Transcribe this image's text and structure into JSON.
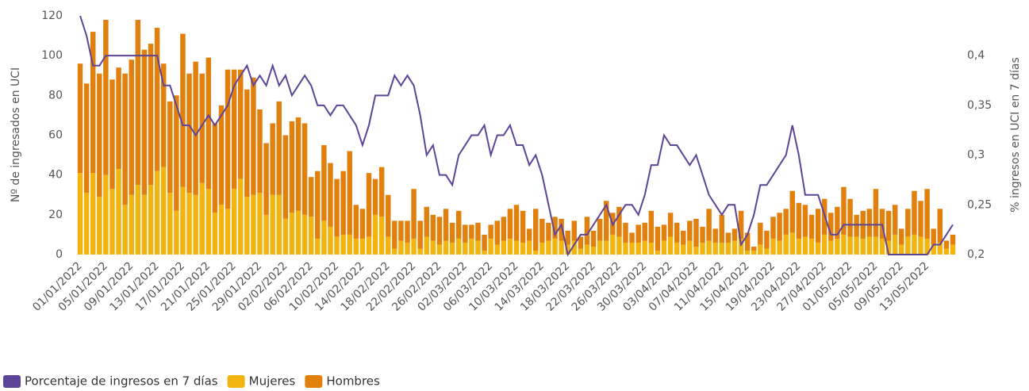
{
  "chart_data": {
    "type": "bar",
    "categories": [
      "01/01/2022",
      null,
      null,
      null,
      "05/01/2022",
      null,
      null,
      null,
      "09/01/2022",
      null,
      null,
      null,
      "13/01/2022",
      null,
      null,
      null,
      "17/01/2022",
      null,
      null,
      null,
      "21/01/2022",
      null,
      null,
      null,
      "25/01/2022",
      null,
      null,
      null,
      "29/01/2022",
      null,
      null,
      null,
      "02/02/2022",
      null,
      null,
      null,
      "06/02/2022",
      null,
      null,
      null,
      "10/02/2022",
      null,
      null,
      null,
      "14/02/2022",
      null,
      null,
      null,
      "18/02/2022",
      null,
      null,
      null,
      "22/02/2022",
      null,
      null,
      null,
      "26/02/2022",
      null,
      null,
      null,
      "02/03/2022",
      null,
      null,
      null,
      "06/03/2022",
      null,
      null,
      null,
      "10/03/2022",
      null,
      null,
      null,
      "14/03/2022",
      null,
      null,
      null,
      "18/03/2022",
      null,
      null,
      null,
      "22/03/2022",
      null,
      null,
      null,
      "26/03/2022",
      null,
      null,
      null,
      "30/03/2022",
      null,
      null,
      null,
      "03/04/2022",
      null,
      null,
      null,
      "07/04/2022",
      null,
      null,
      null,
      "11/04/2022",
      null,
      null,
      null,
      "15/04/2022",
      null,
      null,
      null,
      "19/04/2022",
      null,
      null,
      null,
      "23/04/2022",
      null,
      null,
      null,
      "27/04/2022",
      null,
      null,
      null,
      "01/05/2022",
      null,
      null,
      null,
      "05/05/2022",
      null,
      null,
      null,
      "09/05/2022",
      null,
      null,
      null,
      "13/05/2022",
      null,
      null,
      null,
      null
    ],
    "series": [
      {
        "name": "Porcentaje de ingresos en 7 días",
        "type": "line",
        "axis": "y2",
        "color": "#5c4497",
        "values": [
          0.44,
          0.42,
          0.39,
          0.39,
          0.4,
          0.4,
          0.4,
          0.4,
          0.4,
          0.4,
          0.4,
          0.4,
          0.4,
          0.37,
          0.37,
          0.35,
          0.33,
          0.33,
          0.32,
          0.33,
          0.34,
          0.33,
          0.34,
          0.35,
          0.37,
          0.38,
          0.39,
          0.37,
          0.38,
          0.37,
          0.39,
          0.37,
          0.38,
          0.36,
          0.37,
          0.38,
          0.37,
          0.35,
          0.35,
          0.34,
          0.35,
          0.35,
          0.34,
          0.33,
          0.31,
          0.33,
          0.36,
          0.36,
          0.36,
          0.38,
          0.37,
          0.38,
          0.37,
          0.34,
          0.3,
          0.31,
          0.28,
          0.28,
          0.27,
          0.3,
          0.31,
          0.32,
          0.32,
          0.33,
          0.3,
          0.32,
          0.32,
          0.33,
          0.31,
          0.31,
          0.29,
          0.3,
          0.28,
          0.25,
          0.22,
          0.23,
          0.2,
          0.21,
          0.22,
          0.22,
          0.23,
          0.24,
          0.25,
          0.23,
          0.24,
          0.25,
          0.25,
          0.24,
          0.26,
          0.29,
          0.29,
          0.32,
          0.31,
          0.31,
          0.3,
          0.29,
          0.3,
          0.28,
          0.26,
          0.25,
          0.24,
          0.25,
          0.25,
          0.21,
          0.22,
          0.24,
          0.27,
          0.27,
          0.28,
          0.29,
          0.3,
          0.33,
          0.3,
          0.26,
          0.26,
          0.26,
          0.24,
          0.22,
          0.22,
          0.23,
          0.23,
          0.23,
          0.23,
          0.23,
          0.23,
          0.23,
          0.2,
          0.2,
          0.2,
          0.2,
          0.2,
          0.2,
          0.2,
          0.21,
          0.21,
          0.22,
          0.23
        ]
      },
      {
        "name": "Mujeres",
        "type": "bar",
        "color": "#f2b50f",
        "values": [
          41,
          31,
          41,
          29,
          40,
          33,
          43,
          25,
          30,
          35,
          30,
          35,
          42,
          44,
          31,
          22,
          34,
          31,
          30,
          36,
          33,
          21,
          25,
          23,
          33,
          38,
          29,
          30,
          31,
          20,
          30,
          30,
          18,
          21,
          22,
          20,
          19,
          8,
          17,
          14,
          9,
          10,
          10,
          8,
          8,
          9,
          20,
          19,
          9,
          3,
          7,
          6,
          8,
          3,
          9,
          7,
          5,
          7,
          6,
          8,
          6,
          8,
          7,
          2,
          8,
          5,
          7,
          8,
          7,
          6,
          7,
          2,
          6,
          7,
          8,
          7,
          5,
          7,
          3,
          5,
          4,
          7,
          7,
          10,
          9,
          6,
          6,
          6,
          7,
          6,
          2,
          7,
          9,
          6,
          5,
          7,
          4,
          6,
          7,
          6,
          6,
          6,
          7,
          8,
          2,
          2,
          5,
          3,
          8,
          7,
          10,
          11,
          8,
          9,
          8,
          6,
          10,
          7,
          8,
          10,
          9,
          9,
          8,
          9,
          9,
          8,
          7,
          10,
          5,
          9,
          10,
          9,
          8,
          5,
          6,
          3,
          5
        ]
      },
      {
        "name": "Hombres",
        "type": "bar",
        "color": "#e2800e",
        "values": [
          55,
          55,
          71,
          62,
          78,
          55,
          51,
          66,
          68,
          83,
          73,
          71,
          72,
          52,
          46,
          58,
          77,
          60,
          67,
          55,
          66,
          45,
          50,
          70,
          60,
          55,
          54,
          59,
          42,
          36,
          36,
          47,
          42,
          46,
          47,
          46,
          20,
          34,
          38,
          32,
          29,
          32,
          42,
          17,
          15,
          32,
          18,
          25,
          21,
          14,
          10,
          11,
          25,
          14,
          15,
          13,
          14,
          16,
          10,
          14,
          9,
          7,
          9,
          8,
          7,
          12,
          12,
          15,
          18,
          16,
          6,
          21,
          12,
          9,
          11,
          11,
          7,
          10,
          6,
          14,
          8,
          11,
          20,
          11,
          15,
          10,
          5,
          9,
          9,
          16,
          12,
          8,
          12,
          10,
          7,
          10,
          14,
          8,
          16,
          7,
          14,
          5,
          6,
          14,
          9,
          2,
          11,
          9,
          11,
          14,
          13,
          21,
          18,
          16,
          12,
          17,
          18,
          14,
          16,
          24,
          19,
          11,
          14,
          14,
          24,
          15,
          15,
          15,
          8,
          14,
          22,
          18,
          25,
          8,
          17,
          4,
          5
        ]
      }
    ],
    "y_label": "Nº de ingresados en UCI",
    "y2_label": "% ingresos en UCI en 7 días",
    "ylim": [
      0,
      120
    ],
    "yticks": [
      0,
      20,
      40,
      60,
      80,
      100,
      120
    ],
    "y2lim": [
      0.2,
      0.44
    ],
    "y2ticks": [
      {
        "value": 0.2,
        "label": "0,2"
      },
      {
        "value": 0.25,
        "label": "0,25"
      },
      {
        "value": 0.3,
        "label": "0,3"
      },
      {
        "value": 0.35,
        "label": "0,35"
      },
      {
        "value": 0.4,
        "label": "0,4"
      }
    ],
    "grid": false,
    "legend": "bottom-left"
  }
}
